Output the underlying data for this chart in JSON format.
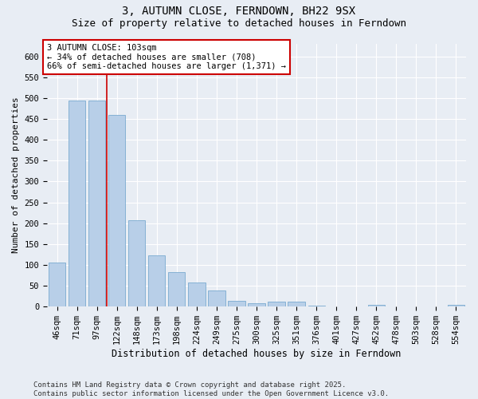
{
  "title": "3, AUTUMN CLOSE, FERNDOWN, BH22 9SX",
  "subtitle": "Size of property relative to detached houses in Ferndown",
  "xlabel": "Distribution of detached houses by size in Ferndown",
  "ylabel": "Number of detached properties",
  "categories": [
    "46sqm",
    "71sqm",
    "97sqm",
    "122sqm",
    "148sqm",
    "173sqm",
    "198sqm",
    "224sqm",
    "249sqm",
    "275sqm",
    "300sqm",
    "325sqm",
    "351sqm",
    "376sqm",
    "401sqm",
    "427sqm",
    "452sqm",
    "478sqm",
    "503sqm",
    "528sqm",
    "554sqm"
  ],
  "values": [
    105,
    495,
    495,
    460,
    207,
    123,
    82,
    57,
    38,
    13,
    8,
    11,
    11,
    2,
    1,
    1,
    5,
    0,
    0,
    0,
    4
  ],
  "bar_color": "#b8cfe8",
  "bar_edge_color": "#7aaad0",
  "background_color": "#e8edf4",
  "grid_color": "#ffffff",
  "annotation_line1": "3 AUTUMN CLOSE: 103sqm",
  "annotation_line2": "← 34% of detached houses are smaller (708)",
  "annotation_line3": "66% of semi-detached houses are larger (1,371) →",
  "annotation_box_color": "#ffffff",
  "annotation_border_color": "#cc0000",
  "red_line_color": "#cc0000",
  "ylim": [
    0,
    630
  ],
  "yticks": [
    0,
    50,
    100,
    150,
    200,
    250,
    300,
    350,
    400,
    450,
    500,
    550,
    600
  ],
  "footnote": "Contains HM Land Registry data © Crown copyright and database right 2025.\nContains public sector information licensed under the Open Government Licence v3.0.",
  "title_fontsize": 10,
  "subtitle_fontsize": 9,
  "xlabel_fontsize": 8.5,
  "ylabel_fontsize": 8,
  "tick_fontsize": 7.5,
  "annotation_fontsize": 7.5,
  "footnote_fontsize": 6.5
}
